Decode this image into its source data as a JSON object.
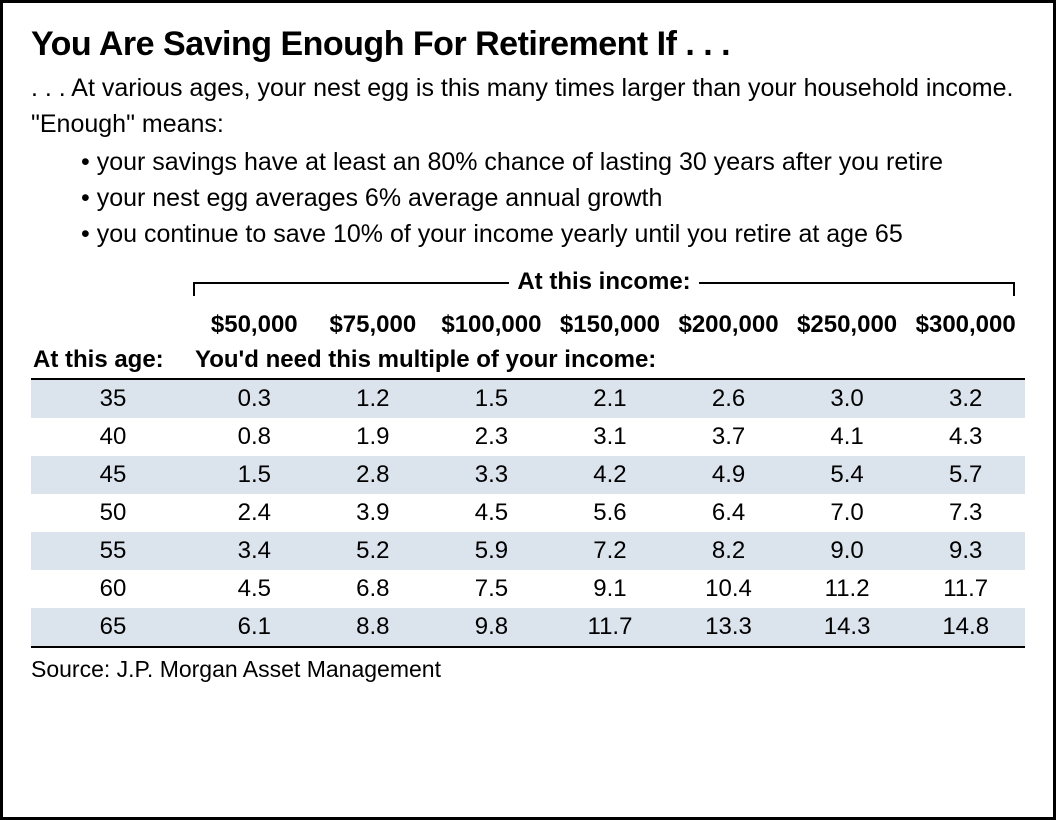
{
  "title": "You Are Saving Enough For Retirement If . . .",
  "subtitle_line1": ". . . At various ages, your nest egg is this many times larger than your household income.",
  "subtitle_line2": "\"Enough\" means:",
  "bullets": [
    "your savings have at least an 80% chance of lasting 30 years after you retire",
    "your nest egg averages 6% average annual growth",
    "you continue to save 10% of your income yearly until you retire at age 65"
  ],
  "table": {
    "income_header_label": "At this income:",
    "age_header_label": "At this age:",
    "sub_header_label": "You'd need this multiple of your income:",
    "income_columns": [
      "$50,000",
      "$75,000",
      "$100,000",
      "$150,000",
      "$200,000",
      "$250,000",
      "$300,000"
    ],
    "ages": [
      "35",
      "40",
      "45",
      "50",
      "55",
      "60",
      "65"
    ],
    "rows": [
      [
        "0.3",
        "1.2",
        "1.5",
        "2.1",
        "2.6",
        "3.0",
        "3.2"
      ],
      [
        "0.8",
        "1.9",
        "2.3",
        "3.1",
        "3.7",
        "4.1",
        "4.3"
      ],
      [
        "1.5",
        "2.8",
        "3.3",
        "4.2",
        "4.9",
        "5.4",
        "5.7"
      ],
      [
        "2.4",
        "3.9",
        "4.5",
        "5.6",
        "6.4",
        "7.0",
        "7.3"
      ],
      [
        "3.4",
        "5.2",
        "5.9",
        "7.2",
        "8.2",
        "9.0",
        "9.3"
      ],
      [
        "4.5",
        "6.8",
        "7.5",
        "9.1",
        "10.4",
        "11.2",
        "11.7"
      ],
      [
        "6.1",
        "8.8",
        "9.8",
        "11.7",
        "13.3",
        "14.3",
        "14.8"
      ]
    ],
    "shaded_color": "#dbe3ed",
    "rule_color": "#000000",
    "background_color": "#ffffff",
    "font_size_title": 34,
    "font_size_body": 25,
    "font_size_table": 24
  },
  "source": "Source:  J.P. Morgan Asset Management"
}
